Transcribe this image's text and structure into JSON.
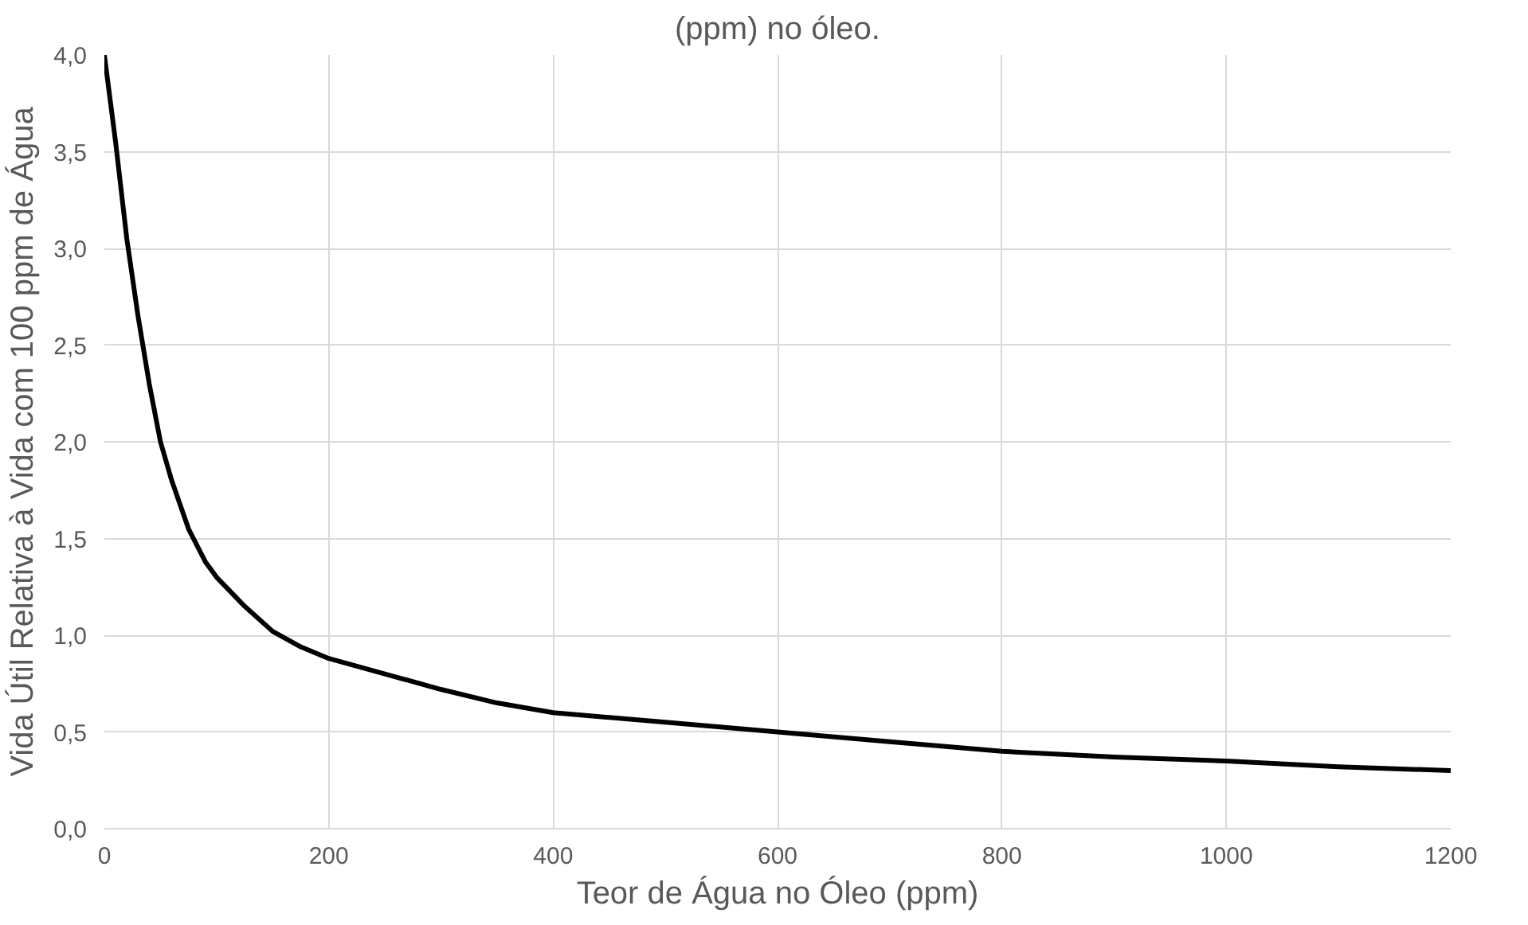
{
  "chart_data": {
    "type": "line",
    "title": "(ppm) no óleo.",
    "xlabel": "Teor de Água no Óleo (ppm)",
    "ylabel": "Vida Útil Relativa à Vida com 100 ppm de Água",
    "x": [
      0,
      10,
      20,
      30,
      40,
      50,
      60,
      75,
      90,
      100,
      125,
      150,
      175,
      200,
      250,
      300,
      350,
      400,
      500,
      600,
      700,
      800,
      900,
      1000,
      1100,
      1200
    ],
    "series": [
      {
        "color": "#000000",
        "values": [
          4.0,
          3.55,
          3.05,
          2.65,
          2.3,
          2.0,
          1.8,
          1.55,
          1.38,
          1.3,
          1.15,
          1.02,
          0.94,
          0.88,
          0.8,
          0.72,
          0.65,
          0.6,
          0.55,
          0.5,
          0.45,
          0.4,
          0.37,
          0.35,
          0.32,
          0.3
        ]
      }
    ],
    "xlim": [
      0,
      1200
    ],
    "ylim": [
      0,
      4
    ],
    "xticks": [
      0,
      200,
      400,
      600,
      800,
      1000,
      1200
    ],
    "yticks": [
      {
        "value": 0,
        "label": "0,0"
      },
      {
        "value": 0.5,
        "label": "0,5"
      },
      {
        "value": 1,
        "label": "1,0"
      },
      {
        "value": 1.5,
        "label": "1,5"
      },
      {
        "value": 2,
        "label": "2,0"
      },
      {
        "value": 2.5,
        "label": "2,5"
      },
      {
        "value": 3,
        "label": "3,0"
      },
      {
        "value": 3.5,
        "label": "3,5"
      },
      {
        "value": 4,
        "label": "4,0"
      }
    ],
    "grid": true,
    "marker": "none",
    "line_style": "solid"
  }
}
